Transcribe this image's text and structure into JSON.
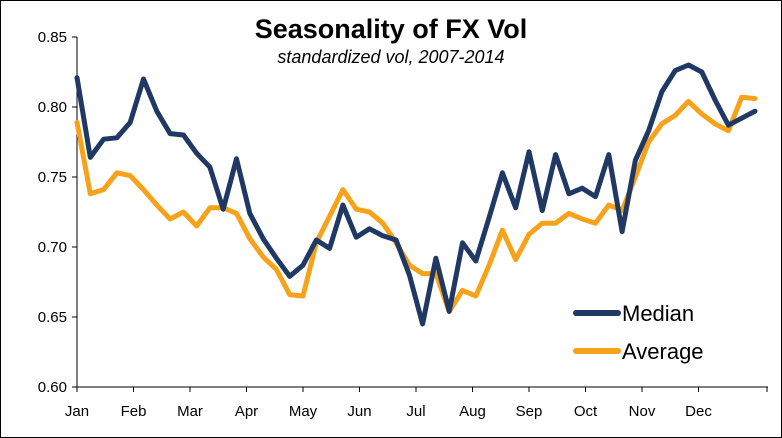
{
  "chart_data": {
    "type": "line",
    "title": "Seasonality of FX Vol",
    "subtitle": "standardized vol, 2007-2014",
    "xlabel": "",
    "ylabel": "",
    "ylim": [
      0.6,
      0.85
    ],
    "yticks": [
      "0.60",
      "0.65",
      "0.70",
      "0.75",
      "0.80",
      "0.85"
    ],
    "months": [
      "Jan",
      "Feb",
      "Mar",
      "Apr",
      "May",
      "Jun",
      "Jul",
      "Aug",
      "Sep",
      "Oct",
      "Nov",
      "Dec"
    ],
    "legend_position": "bottom-right",
    "grid": false,
    "series": [
      {
        "name": "Median",
        "color": "#1f3864",
        "values": [
          0.821,
          0.764,
          0.777,
          0.778,
          0.789,
          0.82,
          0.797,
          0.781,
          0.78,
          0.767,
          0.757,
          0.727,
          0.763,
          0.724,
          0.706,
          0.692,
          0.679,
          0.687,
          0.705,
          0.699,
          0.73,
          0.707,
          0.713,
          0.708,
          0.705,
          0.68,
          0.645,
          0.692,
          0.654,
          0.703,
          0.69,
          0.721,
          0.753,
          0.728,
          0.768,
          0.726,
          0.766,
          0.738,
          0.742,
          0.736,
          0.766,
          0.711,
          0.762,
          0.783,
          0.811,
          0.826,
          0.83,
          0.825,
          0.805,
          0.787,
          0.792,
          0.797
        ]
      },
      {
        "name": "Average",
        "color": "#f7a21b",
        "values": [
          0.789,
          0.738,
          0.741,
          0.753,
          0.751,
          0.741,
          0.73,
          0.72,
          0.725,
          0.715,
          0.728,
          0.728,
          0.724,
          0.706,
          0.693,
          0.684,
          0.666,
          0.665,
          0.703,
          0.722,
          0.741,
          0.727,
          0.725,
          0.717,
          0.703,
          0.687,
          0.681,
          0.681,
          0.654,
          0.669,
          0.665,
          0.687,
          0.712,
          0.691,
          0.709,
          0.717,
          0.717,
          0.724,
          0.72,
          0.717,
          0.73,
          0.726,
          0.75,
          0.775,
          0.788,
          0.794,
          0.804,
          0.795,
          0.788,
          0.783,
          0.807,
          0.806
        ]
      }
    ]
  }
}
